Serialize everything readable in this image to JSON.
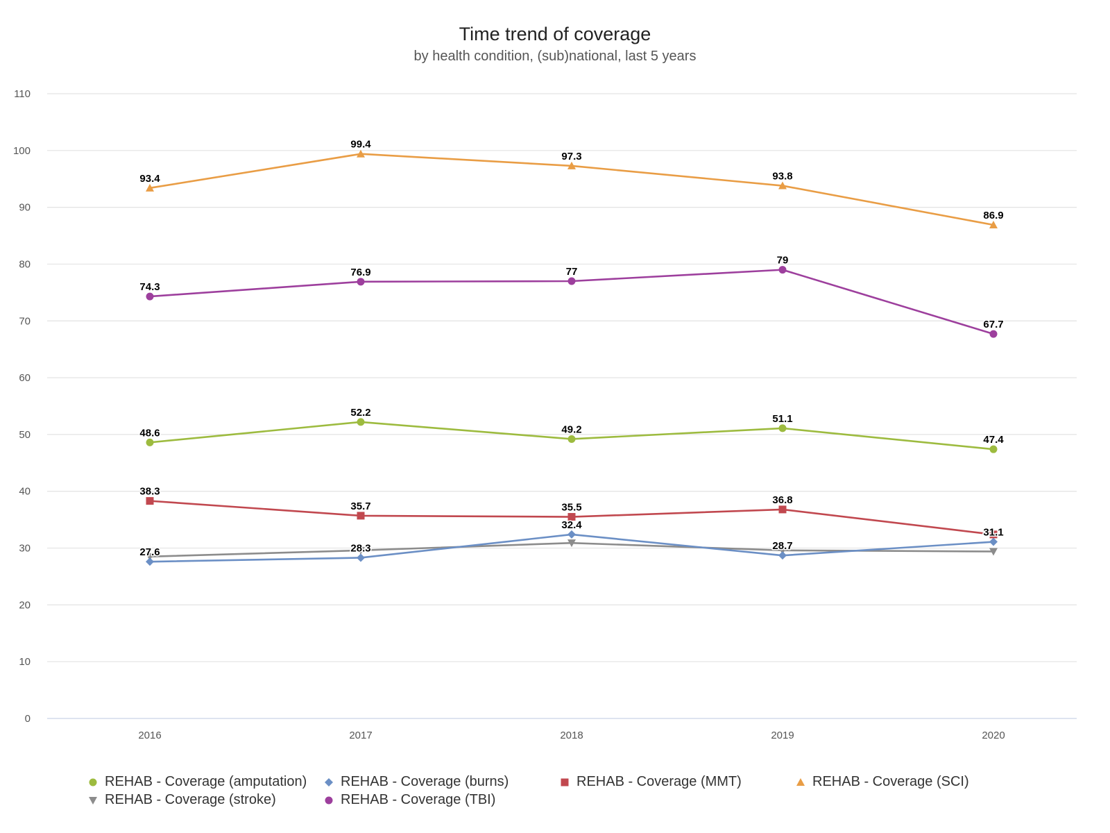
{
  "chart_data": {
    "type": "line",
    "title": "Time trend of coverage",
    "subtitle": "by health condition, (sub)national, last 5 years",
    "x": [
      "2016",
      "2017",
      "2018",
      "2019",
      "2020"
    ],
    "ylim": [
      0,
      110
    ],
    "yticks": [
      "0",
      "10",
      "20",
      "30",
      "40",
      "50",
      "60",
      "70",
      "80",
      "90",
      "100",
      "110"
    ],
    "grid": true,
    "legend_position": "bottom",
    "series": [
      {
        "name": "REHAB - Coverage (amputation)",
        "color": "#9dbb3f",
        "marker": "circle",
        "values": [
          48.6,
          52.2,
          49.2,
          51.1,
          47.4
        ],
        "labels": [
          "48.6",
          "52.2",
          "49.2",
          "51.1",
          "47.4"
        ]
      },
      {
        "name": "REHAB - Coverage (burns)",
        "color": "#6b8fc5",
        "marker": "diamond",
        "values": [
          27.6,
          28.3,
          32.4,
          28.7,
          31.1
        ],
        "labels": [
          "27.6",
          "28.3",
          "32.4",
          "28.7",
          "31.1"
        ]
      },
      {
        "name": "REHAB - Coverage (MMT)",
        "color": "#c1484f",
        "marker": "square",
        "values": [
          38.3,
          35.7,
          35.5,
          36.8,
          32.4
        ],
        "labels": [
          "38.3",
          "35.7",
          "35.5",
          "36.8",
          ""
        ]
      },
      {
        "name": "REHAB - Coverage (SCI)",
        "color": "#e99d45",
        "marker": "triangle",
        "values": [
          93.4,
          99.4,
          97.3,
          93.8,
          86.9
        ],
        "labels": [
          "93.4",
          "99.4",
          "97.3",
          "93.8",
          "86.9"
        ]
      },
      {
        "name": "REHAB - Coverage (stroke)",
        "color": "#8c8c8c",
        "marker": "triangle-down",
        "values": [
          28.5,
          29.6,
          30.9,
          29.6,
          29.4
        ],
        "labels": [
          "",
          "",
          "",
          "",
          ""
        ]
      },
      {
        "name": "REHAB - Coverage (TBI)",
        "color": "#9d3f9d",
        "marker": "circle",
        "values": [
          74.3,
          76.9,
          77.0,
          79.0,
          67.7
        ],
        "labels": [
          "74.3",
          "76.9",
          "77",
          "79",
          "67.7"
        ]
      }
    ]
  }
}
